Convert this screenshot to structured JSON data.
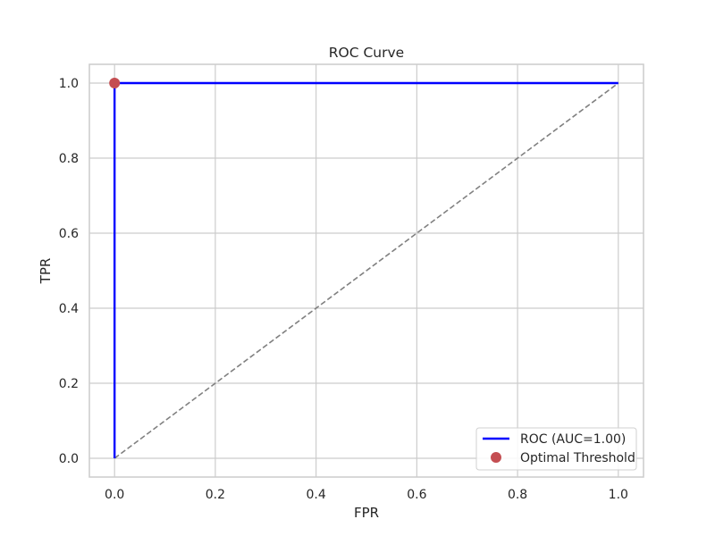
{
  "chart_data": {
    "type": "line",
    "title": "ROC Curve",
    "xlabel": "FPR",
    "ylabel": "TPR",
    "xlim": [
      -0.05,
      1.05
    ],
    "ylim": [
      -0.05,
      1.05
    ],
    "x_ticks": [
      0.0,
      0.2,
      0.4,
      0.6,
      0.8,
      1.0
    ],
    "x_tick_labels": [
      "0.0",
      "0.2",
      "0.4",
      "0.6",
      "0.8",
      "1.0"
    ],
    "y_ticks": [
      0.0,
      0.2,
      0.4,
      0.6,
      0.8,
      1.0
    ],
    "y_tick_labels": [
      "0.0",
      "0.2",
      "0.4",
      "0.6",
      "0.8",
      "1.0"
    ],
    "grid": true,
    "legend_position": "bottom-right",
    "series": [
      {
        "name": "ROC (AUC=1.00)",
        "kind": "line",
        "color": "#0000ff",
        "points": [
          [
            0.0,
            0.0
          ],
          [
            0.0,
            1.0
          ],
          [
            1.0,
            1.0
          ]
        ]
      },
      {
        "name": "Optimal Threshold",
        "kind": "marker",
        "color": "#c44e52",
        "points": [
          [
            0.0,
            1.0
          ]
        ]
      }
    ],
    "reference_line": {
      "style": "dashed",
      "color": "#808080",
      "points": [
        [
          0.0,
          0.0
        ],
        [
          1.0,
          1.0
        ]
      ]
    }
  }
}
